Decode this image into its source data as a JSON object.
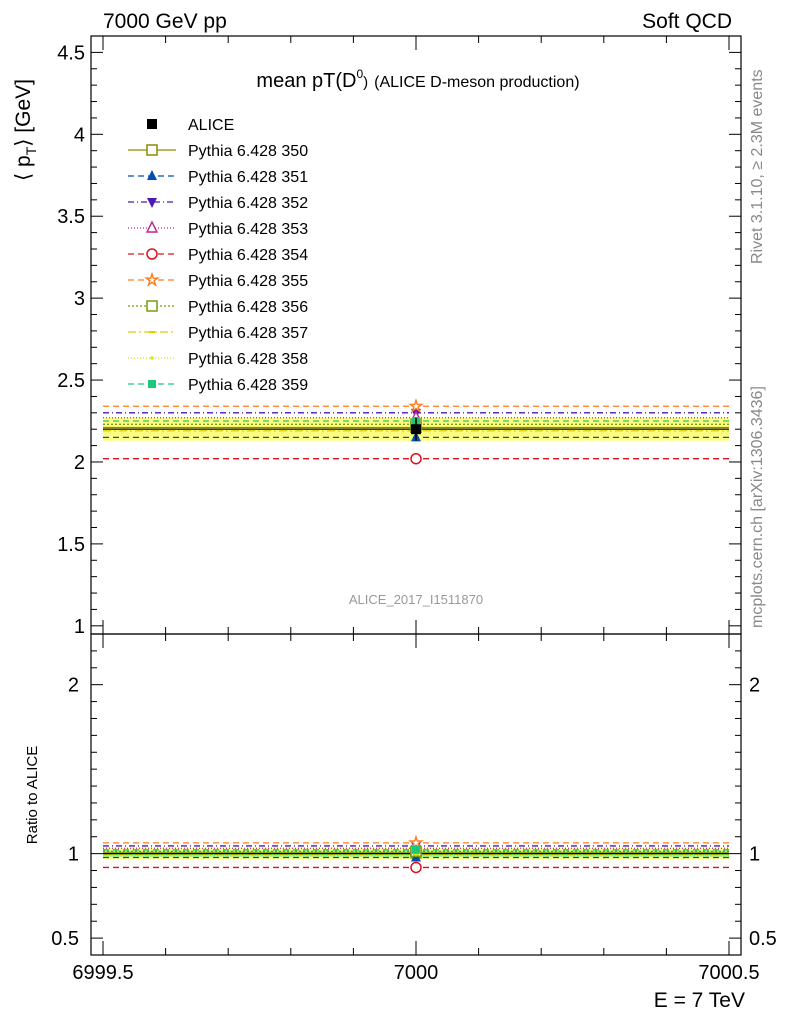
{
  "header": {
    "left": "7000 GeV pp",
    "right": "Soft QCD"
  },
  "side": {
    "rivet": "Rivet 3.1.10, ≥ 2.3M events",
    "mcplots": "mcplots.cern.ch [arXiv:1306.3436]"
  },
  "chart_data": {
    "type": "line",
    "title_main": "mean pT(D",
    "title_sup": "0",
    "title_close": ")",
    "title_sub": "(ALICE D-meson production)",
    "watermark": "ALICE_2017_I1511870",
    "ylabel": "⟨ p",
    "ylabel_sub": "T",
    "ylabel_unit": "⟩ [GeV]",
    "ratio_ylabel": "Ratio to ALICE",
    "xlabel": "E = 7 TeV",
    "xlim": [
      6999.5,
      7000.5
    ],
    "ylim": [
      0.95,
      4.6
    ],
    "ratio_ylim": [
      0.4,
      2.3
    ],
    "x_ticks": [
      "6999.5",
      "7000",
      "7000.5"
    ],
    "x_tick_values": [
      6999.5,
      7000,
      7000.5
    ],
    "y_ticks": [
      "1",
      "1.5",
      "2",
      "2.5",
      "3",
      "3.5",
      "4",
      "4.5"
    ],
    "y_tick_values": [
      1,
      1.5,
      2,
      2.5,
      3,
      3.5,
      4,
      4.5
    ],
    "ratio_ticks": [
      "0.5",
      "1",
      "2"
    ],
    "ratio_tick_values": [
      0.5,
      1,
      2
    ],
    "data": {
      "name": "ALICE",
      "x": 7000,
      "y": 2.2,
      "yerr": 0.07,
      "color": "#000000",
      "band_color": "#ffff7f",
      "band_stat_color": "#80ff80"
    },
    "series": [
      {
        "name": "Pythia 6.428 350",
        "y": 2.21,
        "color": "#8c8c00",
        "dash": "none",
        "marker": "square-open"
      },
      {
        "name": "Pythia 6.428 351",
        "y": 2.15,
        "color": "#0050b0",
        "dash": "6,4",
        "marker": "triangle-up"
      },
      {
        "name": "Pythia 6.428 352",
        "y": 2.3,
        "color": "#4b1ab6",
        "dash": "6,3,1,3",
        "marker": "triangle-down"
      },
      {
        "name": "Pythia 6.428 353",
        "y": 2.27,
        "color": "#c0268f",
        "dash": "1,2",
        "marker": "triangle-open"
      },
      {
        "name": "Pythia 6.428 354",
        "y": 2.02,
        "color": "#e0101e",
        "dash": "6,4",
        "marker": "circle-open"
      },
      {
        "name": "Pythia 6.428 355",
        "y": 2.34,
        "color": "#ff7a1a",
        "dash": "6,4",
        "marker": "star"
      },
      {
        "name": "Pythia 6.428 356",
        "y": 2.23,
        "color": "#7a9a10",
        "dash": "2,2",
        "marker": "square-open"
      },
      {
        "name": "Pythia 6.428 357",
        "y": 2.19,
        "color": "#d8d200",
        "dash": "8,3,2,3",
        "marker": "dash"
      },
      {
        "name": "Pythia 6.428 358",
        "y": 2.2,
        "color": "#d2ea22",
        "dash": "1,2",
        "marker": "dot"
      },
      {
        "name": "Pythia 6.428 359",
        "y": 2.25,
        "color": "#1ec87a",
        "dash": "6,4",
        "marker": "square"
      }
    ]
  }
}
